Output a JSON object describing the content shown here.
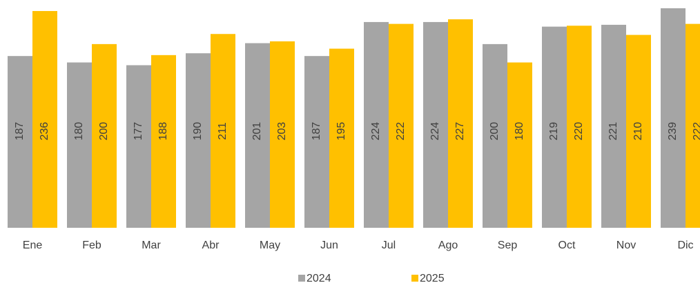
{
  "chart_data": {
    "type": "bar",
    "categories": [
      "Ene",
      "Feb",
      "Mar",
      "Abr",
      "May",
      "Jun",
      "Jul",
      "Ago",
      "Sep",
      "Oct",
      "Nov",
      "Dic"
    ],
    "series": [
      {
        "name": "2024",
        "color": "#a5a5a5",
        "values": [
          187,
          180,
          177,
          190,
          201,
          187,
          224,
          224,
          200,
          219,
          221,
          239
        ]
      },
      {
        "name": "2025",
        "color": "#ffc000",
        "values": [
          236,
          200,
          188,
          211,
          203,
          195,
          222,
          227,
          180,
          220,
          210,
          222
        ]
      }
    ],
    "ylim": [
      0,
      248
    ],
    "legend": "bottom"
  }
}
